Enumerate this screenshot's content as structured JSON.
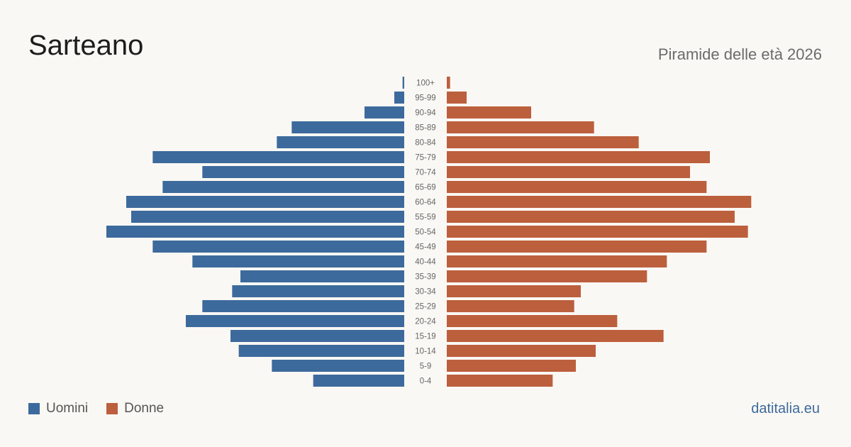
{
  "title": "Sarteano",
  "subtitle": "Piramide delle età 2026",
  "brand": "datitalia.eu",
  "colors": {
    "men": "#3d6a9c",
    "women": "#bc5f3d",
    "background": "#faf8f4",
    "brand": "#3d6a9c"
  },
  "chart_data": {
    "type": "bar",
    "orientation": "horizontal-population-pyramid",
    "categories": [
      "100+",
      "95-99",
      "90-94",
      "85-89",
      "80-84",
      "75-79",
      "70-74",
      "65-69",
      "60-64",
      "55-59",
      "50-54",
      "45-49",
      "40-44",
      "35-39",
      "30-34",
      "25-29",
      "20-24",
      "15-19",
      "10-14",
      "5-9",
      "0-4"
    ],
    "series": [
      {
        "name": "Uomini",
        "values": [
          1,
          6,
          24,
          68,
          77,
          152,
          122,
          146,
          168,
          165,
          180,
          152,
          128,
          99,
          104,
          122,
          132,
          105,
          100,
          80,
          55
        ]
      },
      {
        "name": "Donne",
        "values": [
          2,
          12,
          51,
          89,
          116,
          159,
          147,
          157,
          184,
          174,
          182,
          157,
          133,
          121,
          81,
          77,
          103,
          131,
          90,
          78,
          64
        ]
      }
    ],
    "xlabel": "",
    "ylabel": "",
    "grid": false,
    "legend": "bottom-left"
  }
}
